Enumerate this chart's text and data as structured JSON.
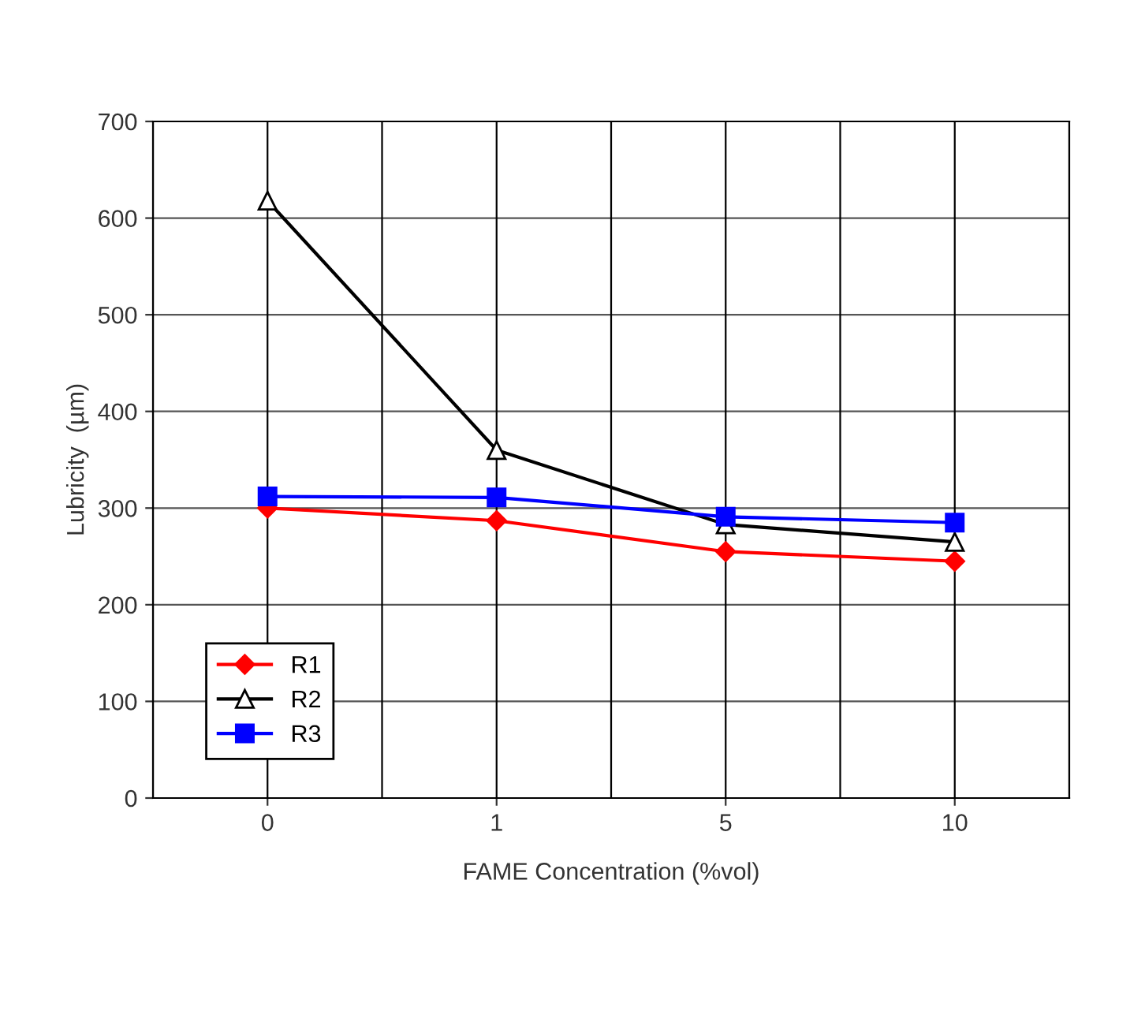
{
  "chart_data": {
    "type": "line",
    "xlabel": "FAME Concentration (%vol)",
    "ylabel": "Lubricity  (µm)",
    "categories": [
      "0",
      "1",
      "5",
      "10"
    ],
    "series": [
      {
        "name": "R1",
        "color": "#ff0000",
        "marker": "diamond",
        "values": [
          300,
          287,
          255,
          245
        ]
      },
      {
        "name": "R2",
        "color": "#000000",
        "marker": "triangle",
        "values": [
          618,
          360,
          283,
          265
        ]
      },
      {
        "name": "R3",
        "color": "#0000ff",
        "marker": "square",
        "values": [
          312,
          311,
          291,
          285
        ]
      }
    ],
    "ylim": [
      0,
      700
    ],
    "yticks": [
      0,
      100,
      200,
      300,
      400,
      500,
      600,
      700
    ],
    "grid": true,
    "legend": "lower left",
    "line_style": "solid"
  }
}
